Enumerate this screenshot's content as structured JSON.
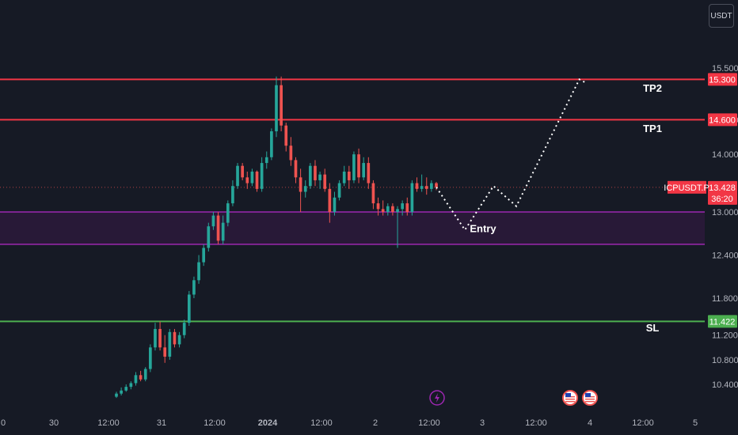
{
  "currency": "USDT",
  "symbol_tag": "ICPUSDT.P",
  "countdown": "36:20",
  "colors": {
    "background": "#161a25",
    "up": "#26a69a",
    "down": "#ef5350",
    "tp_line": "#f23645",
    "sl_line": "#4caf50",
    "zone_border": "#9c27b0",
    "zone_fill": "#2a1a3a",
    "price_line": "#ef5350"
  },
  "chart_data": {
    "type": "candlestick",
    "symbol": "ICPUSDT.P",
    "last_price": 13.428,
    "y_ticks": [
      10.4,
      10.8,
      11.2,
      11.8,
      12.4,
      13.0,
      14.0,
      14.6,
      15.5
    ],
    "x_ticks": [
      "0",
      "30",
      "12:00",
      "31",
      "12:00",
      "2024",
      "12:00",
      "2",
      "12:00",
      "3",
      "12:00",
      "4",
      "12:00",
      "5"
    ],
    "levels": [
      {
        "name": "TP2",
        "price": 15.3,
        "tag": "15.300",
        "kind": "tp"
      },
      {
        "name": "TP1",
        "price": 14.6,
        "tag": "14.600",
        "kind": "tp"
      },
      {
        "name": "SL",
        "price": 11.422,
        "tag": "11.422",
        "kind": "sl"
      }
    ],
    "entry_zone": {
      "label": "Entry",
      "upper": 13.0,
      "lower": 12.55
    },
    "candles": [
      [
        10.2,
        10.28,
        10.18,
        10.25
      ],
      [
        10.25,
        10.35,
        10.22,
        10.3
      ],
      [
        10.3,
        10.4,
        10.28,
        10.36
      ],
      [
        10.36,
        10.45,
        10.32,
        10.42
      ],
      [
        10.42,
        10.6,
        10.38,
        10.55
      ],
      [
        10.55,
        10.62,
        10.45,
        10.48
      ],
      [
        10.48,
        10.68,
        10.45,
        10.65
      ],
      [
        10.65,
        11.05,
        10.6,
        11.0
      ],
      [
        11.0,
        11.4,
        10.95,
        11.3
      ],
      [
        11.3,
        11.42,
        10.95,
        11.0
      ],
      [
        11.0,
        11.2,
        10.75,
        10.85
      ],
      [
        10.85,
        11.3,
        10.8,
        11.25
      ],
      [
        11.25,
        11.3,
        11.0,
        11.05
      ],
      [
        11.05,
        11.25,
        11.0,
        11.2
      ],
      [
        11.2,
        11.45,
        11.15,
        11.4
      ],
      [
        11.4,
        11.9,
        11.35,
        11.85
      ],
      [
        11.85,
        12.1,
        11.8,
        12.05
      ],
      [
        12.05,
        12.4,
        12.0,
        12.3
      ],
      [
        12.3,
        12.55,
        12.25,
        12.5
      ],
      [
        12.5,
        12.85,
        12.45,
        12.8
      ],
      [
        12.8,
        13.0,
        12.75,
        12.95
      ],
      [
        12.95,
        13.0,
        12.55,
        12.6
      ],
      [
        12.6,
        12.95,
        12.55,
        12.85
      ],
      [
        12.85,
        13.2,
        12.8,
        13.15
      ],
      [
        13.15,
        13.55,
        13.1,
        13.45
      ],
      [
        13.45,
        13.85,
        13.4,
        13.8
      ],
      [
        13.8,
        13.85,
        13.55,
        13.6
      ],
      [
        13.6,
        13.7,
        13.4,
        13.5
      ],
      [
        13.5,
        13.75,
        13.45,
        13.7
      ],
      [
        13.7,
        13.72,
        13.35,
        13.4
      ],
      [
        13.4,
        13.95,
        13.35,
        13.85
      ],
      [
        13.85,
        14.05,
        13.75,
        13.95
      ],
      [
        13.95,
        14.45,
        13.9,
        14.4
      ],
      [
        14.4,
        15.35,
        14.3,
        15.2
      ],
      [
        15.2,
        15.35,
        14.4,
        14.5
      ],
      [
        14.5,
        14.55,
        14.05,
        14.15
      ],
      [
        14.15,
        14.3,
        13.8,
        13.9
      ],
      [
        13.9,
        13.95,
        13.5,
        13.6
      ],
      [
        13.6,
        13.75,
        13.0,
        13.35
      ],
      [
        13.35,
        13.55,
        13.25,
        13.45
      ],
      [
        13.45,
        13.85,
        13.4,
        13.8
      ],
      [
        13.8,
        13.9,
        13.45,
        13.55
      ],
      [
        13.55,
        13.7,
        13.4,
        13.65
      ],
      [
        13.65,
        13.75,
        13.35,
        13.4
      ],
      [
        13.4,
        13.5,
        12.85,
        13.0
      ],
      [
        13.0,
        13.35,
        12.95,
        13.25
      ],
      [
        13.25,
        13.55,
        13.2,
        13.5
      ],
      [
        13.5,
        13.8,
        13.45,
        13.7
      ],
      [
        13.7,
        13.8,
        13.4,
        13.55
      ],
      [
        13.55,
        14.05,
        13.5,
        14.0
      ],
      [
        14.0,
        14.1,
        13.5,
        13.6
      ],
      [
        13.6,
        13.95,
        13.55,
        13.85
      ],
      [
        13.85,
        13.95,
        13.4,
        13.5
      ],
      [
        13.5,
        13.55,
        13.05,
        13.15
      ],
      [
        13.15,
        13.25,
        12.95,
        13.05
      ],
      [
        13.05,
        13.2,
        12.95,
        13.0
      ],
      [
        13.0,
        13.15,
        12.95,
        13.1
      ],
      [
        13.1,
        13.15,
        12.95,
        13.0
      ],
      [
        13.0,
        13.1,
        12.5,
        13.05
      ],
      [
        13.05,
        13.2,
        12.95,
        13.15
      ],
      [
        13.15,
        13.25,
        12.95,
        13.0
      ],
      [
        13.0,
        13.55,
        12.95,
        13.5
      ],
      [
        13.5,
        13.6,
        13.35,
        13.4
      ],
      [
        13.4,
        13.65,
        13.35,
        13.45
      ],
      [
        13.45,
        13.6,
        13.3,
        13.4
      ],
      [
        13.4,
        13.55,
        13.35,
        13.5
      ],
      [
        13.5,
        13.52,
        13.38,
        13.43
      ]
    ],
    "projection": [
      [
        13.43,
        0
      ],
      [
        12.75,
        5
      ],
      [
        13.45,
        10
      ],
      [
        13.1,
        14
      ],
      [
        15.3,
        25
      ],
      [
        15.25,
        26
      ]
    ]
  }
}
